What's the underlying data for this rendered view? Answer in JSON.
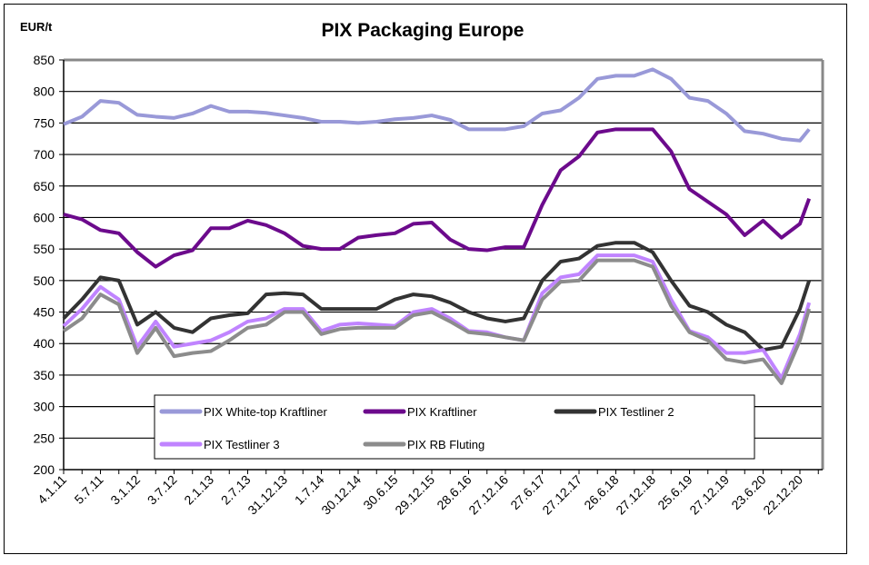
{
  "chart_data": {
    "type": "line",
    "title": "PIX Packaging Europe",
    "ylabel": "EUR/t",
    "xlabel": "",
    "ylim": [
      200,
      850
    ],
    "yticks": [
      200,
      250,
      300,
      350,
      400,
      450,
      500,
      550,
      600,
      650,
      700,
      750,
      800,
      850
    ],
    "grid": true,
    "legend_position": "bottom-center",
    "x_unit": "months since 4.1.11",
    "x_ticklabels": [
      "4.1.11",
      "5.7.11",
      "3.1.12",
      "3.7.12",
      "2.1.13",
      "2.7.13",
      "31.12.13",
      "1.7.14",
      "30.12.14",
      "30.6.15",
      "29.12.15",
      "28.6.16",
      "27.12.16",
      "27.6.17",
      "27.12.17",
      "26.6.18",
      "27.12.18",
      "25.6.19",
      "27.12.19",
      "23.6.20",
      "22.12.20"
    ],
    "x": [
      0,
      3,
      6,
      9,
      12,
      15,
      18,
      21,
      24,
      27,
      30,
      33,
      36,
      39,
      42,
      45,
      48,
      51,
      54,
      57,
      60,
      63,
      66,
      69,
      72,
      75,
      78,
      81,
      84,
      87,
      90,
      93,
      96,
      99,
      102,
      105,
      108,
      111,
      114,
      117,
      120,
      121.5
    ],
    "series": [
      {
        "name": "PIX White-top Kraftliner",
        "color": "#9999d8",
        "values": [
          748,
          760,
          785,
          782,
          763,
          760,
          758,
          765,
          777,
          768,
          768,
          766,
          762,
          758,
          752,
          752,
          750,
          752,
          756,
          758,
          762,
          755,
          740,
          740,
          740,
          745,
          765,
          770,
          790,
          820,
          825,
          825,
          835,
          820,
          790,
          785,
          765,
          737,
          733,
          725,
          722,
          740
        ]
      },
      {
        "name": "PIX Kraftliner",
        "color": "#6c0a8c",
        "values": [
          605,
          597,
          580,
          575,
          545,
          522,
          540,
          548,
          583,
          583,
          595,
          588,
          575,
          555,
          550,
          550,
          568,
          572,
          575,
          590,
          592,
          565,
          550,
          548,
          553,
          553,
          620,
          675,
          697,
          735,
          740,
          740,
          740,
          705,
          645,
          625,
          605,
          572,
          595,
          568,
          590,
          630
        ]
      },
      {
        "name": "PIX Testliner 2",
        "color": "#333333",
        "values": [
          440,
          470,
          505,
          500,
          430,
          450,
          425,
          418,
          440,
          445,
          448,
          478,
          480,
          478,
          455,
          455,
          455,
          455,
          470,
          478,
          475,
          465,
          450,
          440,
          435,
          440,
          500,
          530,
          535,
          555,
          560,
          560,
          545,
          500,
          460,
          450,
          430,
          418,
          390,
          395,
          455,
          500
        ]
      },
      {
        "name": "PIX Testliner 3",
        "color": "#c084ff",
        "values": [
          428,
          455,
          490,
          470,
          395,
          435,
          395,
          400,
          405,
          418,
          435,
          440,
          455,
          455,
          420,
          430,
          432,
          430,
          428,
          450,
          455,
          440,
          420,
          418,
          410,
          405,
          480,
          505,
          510,
          540,
          540,
          540,
          530,
          470,
          420,
          410,
          385,
          385,
          390,
          345,
          415,
          465
        ]
      },
      {
        "name": "PIX RB Fluting",
        "color": "#8c8c8c",
        "values": [
          420,
          440,
          478,
          462,
          385,
          425,
          380,
          385,
          388,
          405,
          425,
          430,
          450,
          450,
          415,
          423,
          425,
          425,
          425,
          445,
          450,
          435,
          418,
          415,
          410,
          405,
          470,
          498,
          500,
          532,
          532,
          532,
          522,
          460,
          418,
          405,
          375,
          370,
          375,
          337,
          405,
          455
        ]
      }
    ]
  }
}
